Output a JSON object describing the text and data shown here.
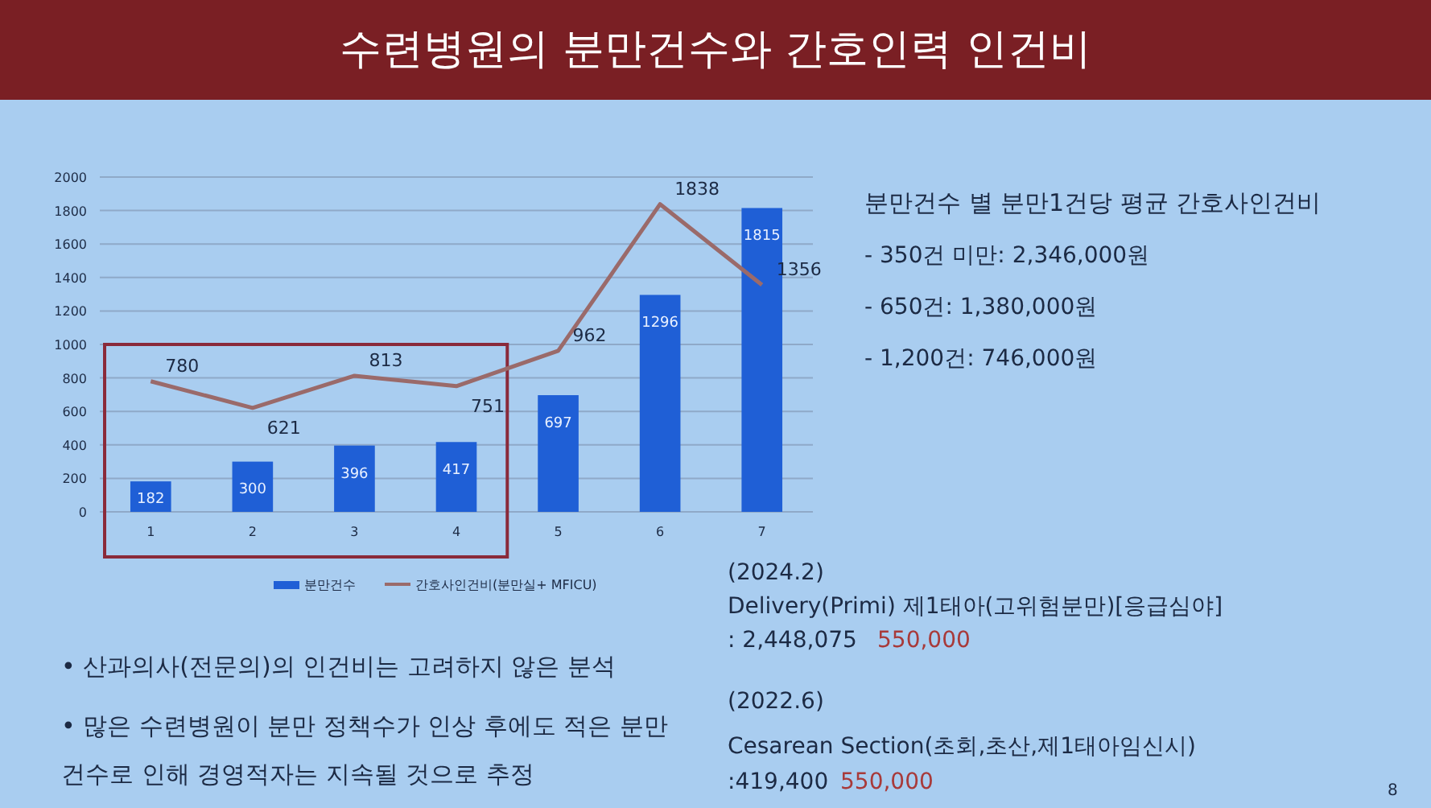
{
  "chart_data": {
    "type": "bar",
    "title": "수련병원의 분만건수와 간호인력 인건비",
    "categories": [
      "1",
      "2",
      "3",
      "4",
      "5",
      "6",
      "7"
    ],
    "series": [
      {
        "name": "분만건수",
        "color": "#1f5fd6",
        "values": [
          182,
          300,
          396,
          417,
          697,
          1296,
          1815
        ]
      },
      {
        "name": "간호사인건비(분만실+ MFICU)",
        "type": "line",
        "color": "#9a6a6a",
        "values": [
          780,
          621,
          813,
          751,
          962,
          1838,
          1356
        ]
      }
    ],
    "ylim": [
      0,
      2000
    ],
    "yticks": [
      0,
      200,
      400,
      600,
      800,
      1000,
      1200,
      1400,
      1600,
      1800,
      2000
    ],
    "grid": "y",
    "legend": "bottom",
    "data_labels": true,
    "marker": "none",
    "line_style": "solid",
    "annotations": [
      "분만건수 별 분만1건당 평균 간호사인건비",
      "- 350건 미만: 2,346,000원",
      "- 650건: 1,380,000원",
      "- 1,200건: 746,000원",
      "(2024.2)",
      "Delivery(Primi) 제1태아(고위험분만)[응급심야]",
      ": 2,448,075",
      "550,000",
      "• 산과의사(전문의)의 인건비는 고려하지 않은 분석",
      "• 많은 수련병원이 분만 정책수가 인상 후에도 적은 분만 건수로 인해 경영적자는 지속될 것으로 추정",
      "(2022.6)",
      "Cesarean Section(초회,초산,제1태아임신시)",
      ":419,400",
      "550,000",
      "8"
    ]
  }
}
